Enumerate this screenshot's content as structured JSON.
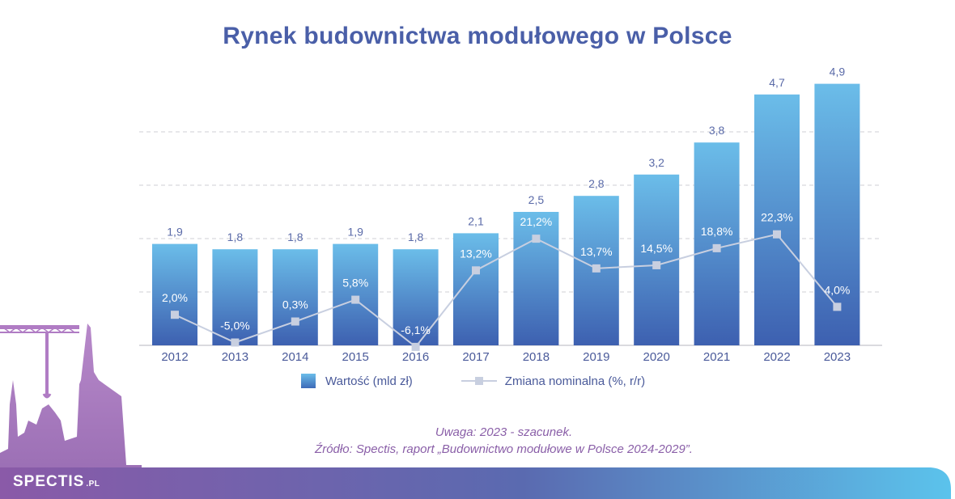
{
  "title": "Rynek budownictwa modułowego w Polsce",
  "chart_data": {
    "type": "bar",
    "categories": [
      "2012",
      "2013",
      "2014",
      "2015",
      "2016",
      "2017",
      "2018",
      "2019",
      "2020",
      "2021",
      "2022",
      "2023"
    ],
    "series": [
      {
        "name": "Wartość (mld zł)",
        "type": "bar",
        "values": [
          1.9,
          1.8,
          1.8,
          1.9,
          1.8,
          2.1,
          2.5,
          2.8,
          3.2,
          3.8,
          4.7,
          4.9
        ],
        "labels": [
          "1,9",
          "1,8",
          "1,8",
          "1,9",
          "1,8",
          "2,1",
          "2,5",
          "2,8",
          "3,2",
          "3,8",
          "4,7",
          "4,9"
        ]
      },
      {
        "name": "Zmiana nominalna (%, r/r)",
        "type": "line",
        "values": [
          2.0,
          -5.0,
          0.3,
          5.8,
          -6.1,
          13.2,
          21.2,
          13.7,
          14.5,
          18.8,
          22.3,
          4.0
        ],
        "labels": [
          "2,0%",
          "-5,0%",
          "0,3%",
          "5,8%",
          "-6,1%",
          "13,2%",
          "21,2%",
          "13,7%",
          "14,5%",
          "18,8%",
          "22,3%",
          "4,0%"
        ]
      }
    ],
    "grid": true,
    "legend": "bottom",
    "colors": {
      "bar_top": "#6bbde9",
      "bar_bottom": "#3d60b0",
      "line": "#c8cfe0",
      "labels": "#4a5a9a"
    }
  },
  "legend": {
    "bar": "Wartość (mld zł)",
    "line": "Zmiana nominalna (%, r/r)"
  },
  "notes": {
    "line1": "Uwaga: 2023 - szacunek.",
    "line2": "Źródło: Spectis, raport „Budownictwo modułowe w Polsce 2024-2029”."
  },
  "logo": {
    "text": "SPECTIS",
    "suffix": ".PL"
  }
}
